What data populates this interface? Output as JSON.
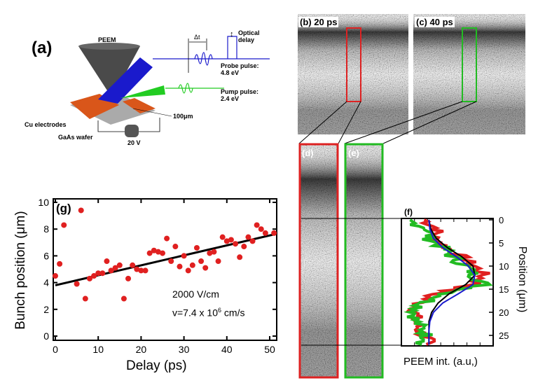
{
  "panel_a": {
    "label": "(a)",
    "peem": "PEEM",
    "delta_t": "Δt",
    "optical_delay": [
      "Optical",
      "delay"
    ],
    "probe": [
      "Probe pulse:",
      "4.8 eV"
    ],
    "pump": [
      "Pump pulse:",
      "2.4 eV"
    ],
    "distance": "100μm",
    "electrodes": "Cu electrodes",
    "wafer": "GaAs wafer",
    "voltage": "20 V",
    "colors": {
      "probe": "#1a1acc",
      "pump": "#22cc22",
      "electrode": "#d9561a",
      "cone": "#444444"
    }
  },
  "panel_b": {
    "label": "(b) 20 ps",
    "roi_color": "#dd2222"
  },
  "panel_c": {
    "label": "(c) 40 ps",
    "roi_color": "#22bb22"
  },
  "panel_d": {
    "label": "(d)",
    "border_color": "#dd2222"
  },
  "panel_e": {
    "label": "(e)",
    "border_color": "#22bb22"
  },
  "chart_data": [
    {
      "panel": "(g)",
      "type": "scatter",
      "xlabel": "Delay (ps)",
      "ylabel": "Bunch position (μm)",
      "xlim": [
        -1,
        52
      ],
      "ylim": [
        -0.3,
        10.3
      ],
      "xticks": [
        0,
        10,
        20,
        30,
        40,
        50
      ],
      "yticks": [
        0,
        2,
        4,
        6,
        8,
        10
      ],
      "annotations": [
        "2000 V/cm",
        "v=7.4 x 10",
        "6",
        " cm/s"
      ],
      "marker_color": "#e02020",
      "x": [
        0,
        1,
        2,
        5,
        6,
        7,
        8,
        9,
        10,
        11,
        12,
        13,
        14,
        15,
        16,
        17,
        18,
        19,
        20,
        21,
        22,
        23,
        24,
        25,
        26,
        27,
        28,
        29,
        30,
        31,
        32,
        33,
        34,
        35,
        36,
        37,
        38,
        39,
        40,
        41,
        42,
        43,
        44,
        45,
        46,
        47,
        48,
        49,
        51
      ],
      "y": [
        4.5,
        5.4,
        8.3,
        3.9,
        9.4,
        2.8,
        4.3,
        4.5,
        4.7,
        4.7,
        5.6,
        4.9,
        5.1,
        5.3,
        2.8,
        4.3,
        5.3,
        5.0,
        4.9,
        4.9,
        6.2,
        6.4,
        6.3,
        6.2,
        7.3,
        5.6,
        6.7,
        5.2,
        6.0,
        4.9,
        5.3,
        6.6,
        5.6,
        5.1,
        6.2,
        6.3,
        5.6,
        7.4,
        7.1,
        7.2,
        6.9,
        5.9,
        6.7,
        7.4,
        7.1,
        8.3,
        8.0,
        7.7,
        7.7
      ],
      "fit": {
        "x": [
          0,
          51
        ],
        "y": [
          3.8,
          7.6
        ],
        "color": "#000000"
      }
    },
    {
      "panel": "(f)",
      "type": "line",
      "xlabel": "PEEM int. (a.u,)",
      "ylabel": "Position (μm)",
      "ylim": [
        0,
        27
      ],
      "yticks": [
        0,
        5,
        10,
        15,
        20,
        25
      ],
      "positions": [
        0,
        2,
        4,
        6,
        8,
        10,
        12,
        14,
        16,
        18,
        20,
        22,
        24,
        26,
        27
      ],
      "series": [
        {
          "color": "#e02020",
          "values": [
            0.25,
            0.4,
            0.35,
            0.5,
            0.65,
            0.8,
            0.9,
            0.8,
            0.35,
            0.2,
            0.15,
            0.15,
            0.2,
            0.3,
            0.2
          ]
        },
        {
          "color": "#22bb22",
          "values": [
            0.05,
            0.3,
            0.3,
            0.45,
            0.55,
            0.7,
            0.8,
            0.9,
            0.5,
            0.25,
            0.15,
            0.15,
            0.25,
            0.3,
            0.2
          ]
        },
        {
          "color": "#000000",
          "values": [
            0.3,
            0.32,
            0.38,
            0.5,
            0.66,
            0.78,
            0.8,
            0.7,
            0.52,
            0.4,
            0.33,
            0.3,
            0.3,
            0.3,
            0.3
          ]
        },
        {
          "color": "#1a1acc",
          "values": [
            0.3,
            0.31,
            0.35,
            0.45,
            0.6,
            0.73,
            0.8,
            0.78,
            0.62,
            0.45,
            0.35,
            0.31,
            0.3,
            0.3,
            0.3
          ]
        }
      ]
    }
  ]
}
